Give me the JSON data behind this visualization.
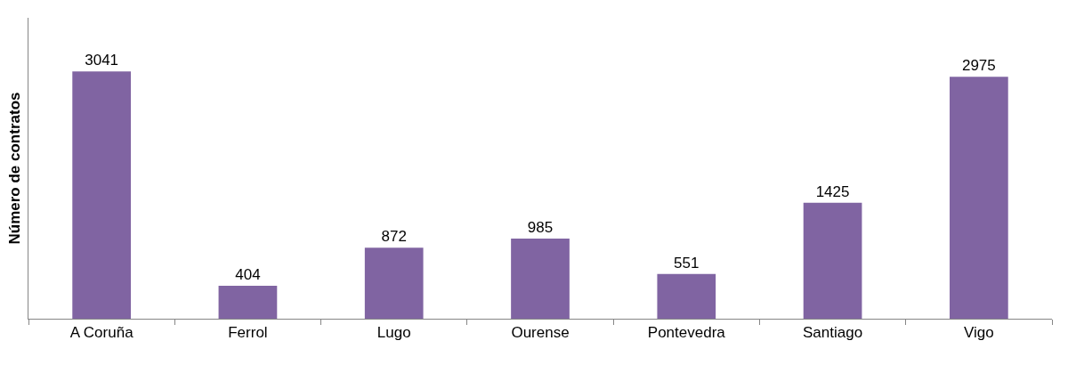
{
  "chart_data": {
    "type": "bar",
    "ylabel": "Número de contratos",
    "categories": [
      "A Coruña",
      "Ferrol",
      "Lugo",
      "Ourense",
      "Pontevedra",
      "Santiago",
      "Vigo"
    ],
    "values": [
      3041,
      404,
      872,
      985,
      551,
      1425,
      2975
    ],
    "color": "#8064a2",
    "ylim": [
      0,
      3700
    ],
    "data_labels": true
  }
}
